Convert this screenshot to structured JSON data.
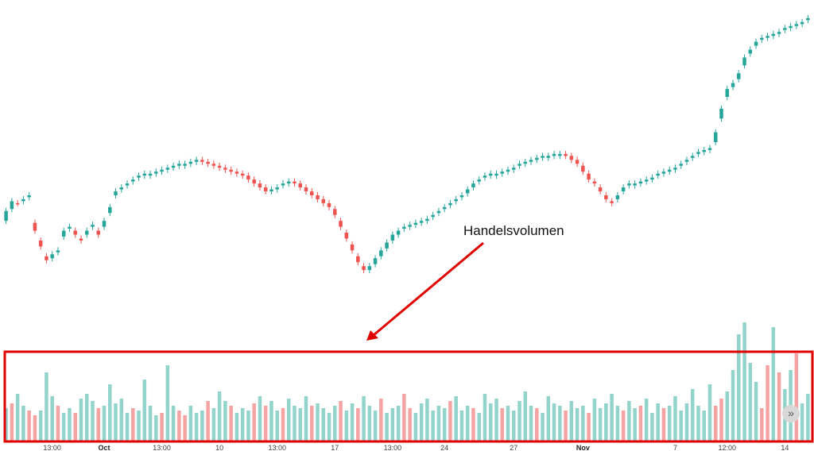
{
  "chart_data": {
    "type": "candlestick",
    "colors": {
      "up": "#26a69a",
      "down": "#ef5350",
      "vol_up": "#92d3cb",
      "vol_down": "#f5a3a3",
      "highlight": "#e00000"
    },
    "annotation": {
      "text": "Handelsvolumen"
    },
    "x_ticks": [
      {
        "label": "13:00",
        "bold": false,
        "i": 8
      },
      {
        "label": "Oct",
        "bold": true,
        "i": 17
      },
      {
        "label": "13:00",
        "bold": false,
        "i": 27
      },
      {
        "label": "10",
        "bold": false,
        "i": 37
      },
      {
        "label": "13:00",
        "bold": false,
        "i": 47
      },
      {
        "label": "17",
        "bold": false,
        "i": 57
      },
      {
        "label": "13:00",
        "bold": false,
        "i": 67
      },
      {
        "label": "24",
        "bold": false,
        "i": 76
      },
      {
        "label": "27",
        "bold": false,
        "i": 88
      },
      {
        "label": "Nov",
        "bold": true,
        "i": 100
      },
      {
        "label": "7",
        "bold": false,
        "i": 116
      },
      {
        "label": "12:00",
        "bold": false,
        "i": 125
      },
      {
        "label": "14",
        "bold": false,
        "i": 135
      }
    ],
    "closes": [
      310,
      305,
      306,
      304,
      302,
      320,
      328,
      335,
      332,
      330,
      320,
      318,
      322,
      325,
      320,
      317,
      322,
      315,
      308,
      300,
      298,
      296,
      294,
      292,
      291,
      291,
      290,
      289,
      288,
      287,
      286,
      286,
      285,
      284,
      285,
      286,
      287,
      288,
      289,
      290,
      291,
      292,
      294,
      296,
      298,
      300,
      299,
      298,
      296,
      295,
      296,
      298,
      300,
      302,
      304,
      306,
      308,
      312,
      318,
      324,
      330,
      336,
      340,
      338,
      334,
      330,
      326,
      322,
      320,
      318,
      317,
      316,
      315,
      314,
      312,
      310,
      308,
      306,
      304,
      302,
      299,
      296,
      294,
      292,
      291,
      291,
      290,
      289,
      288,
      286,
      285,
      284,
      283,
      282,
      282,
      281,
      281,
      282,
      284,
      286,
      290,
      294,
      296,
      300,
      304,
      306,
      302,
      298,
      296,
      296,
      295,
      294,
      293,
      291,
      290,
      289,
      288,
      286,
      284,
      282,
      280,
      279,
      278,
      270,
      258,
      248,
      245,
      240,
      232,
      228,
      224,
      222,
      221,
      220,
      219,
      217,
      216,
      215,
      214,
      212
    ],
    "opens": [
      315,
      309,
      306,
      305,
      303,
      316,
      325,
      333,
      334,
      331,
      323,
      319,
      320,
      324,
      322,
      318,
      320,
      318,
      311,
      302,
      299,
      297,
      295,
      293,
      292,
      292,
      291,
      290,
      289,
      288,
      287,
      287,
      286,
      285,
      284,
      285,
      286,
      287,
      288,
      289,
      290,
      291,
      292,
      294,
      296,
      298,
      300,
      299,
      297,
      296,
      295,
      296,
      298,
      300,
      302,
      304,
      306,
      309,
      315,
      321,
      327,
      333,
      338,
      340,
      337,
      333,
      329,
      325,
      322,
      319,
      318,
      317,
      316,
      315,
      313,
      311,
      309,
      307,
      305,
      303,
      301,
      298,
      295,
      293,
      292,
      292,
      291,
      290,
      289,
      287,
      286,
      285,
      284,
      283,
      283,
      282,
      282,
      281,
      282,
      284,
      287,
      291,
      295,
      298,
      302,
      305,
      304,
      300,
      297,
      297,
      296,
      295,
      294,
      292,
      291,
      290,
      289,
      287,
      285,
      283,
      281,
      280,
      279,
      275,
      263,
      252,
      247,
      243,
      236,
      230,
      226,
      223,
      222,
      221,
      220,
      218,
      217,
      216,
      215,
      213
    ],
    "volumes": [
      28,
      32,
      40,
      30,
      26,
      22,
      26,
      58,
      38,
      30,
      24,
      28,
      24,
      36,
      40,
      34,
      28,
      30,
      48,
      32,
      36,
      24,
      28,
      26,
      52,
      30,
      22,
      24,
      64,
      30,
      26,
      22,
      30,
      24,
      26,
      34,
      28,
      42,
      34,
      30,
      24,
      28,
      26,
      32,
      38,
      30,
      34,
      26,
      28,
      36,
      30,
      28,
      38,
      30,
      32,
      28,
      24,
      30,
      34,
      26,
      32,
      28,
      38,
      30,
      26,
      36,
      24,
      28,
      30,
      40,
      28,
      24,
      32,
      36,
      26,
      30,
      28,
      34,
      38,
      26,
      30,
      28,
      24,
      40,
      32,
      36,
      28,
      30,
      26,
      34,
      42,
      30,
      28,
      24,
      38,
      32,
      30,
      26,
      34,
      28,
      30,
      24,
      36,
      28,
      32,
      40,
      30,
      26,
      34,
      28,
      30,
      36,
      24,
      32,
      28,
      30,
      38,
      26,
      32,
      44,
      30,
      26,
      48,
      30,
      36,
      42,
      60,
      90,
      100,
      66,
      50,
      28,
      64,
      96,
      58,
      44,
      60,
      74,
      32,
      40
    ],
    "volume_up": [
      true,
      false,
      true,
      true,
      false,
      false,
      true,
      true,
      true,
      false,
      true,
      true,
      false,
      true,
      true,
      true,
      false,
      true,
      true,
      true,
      true,
      true,
      false,
      true,
      true,
      true,
      true,
      false,
      true,
      true,
      false,
      false,
      true,
      true,
      true,
      false,
      true,
      true,
      true,
      false,
      true,
      true,
      true,
      false,
      true,
      false,
      true,
      true,
      false,
      true,
      true,
      true,
      true,
      false,
      true,
      true,
      true,
      true,
      false,
      true,
      true,
      false,
      true,
      true,
      true,
      false,
      true,
      true,
      true,
      false,
      false,
      true,
      true,
      true,
      true,
      true,
      true,
      false,
      true,
      true,
      true,
      false,
      true,
      true,
      true,
      true,
      false,
      true,
      true,
      true,
      true,
      true,
      false,
      true,
      true,
      true,
      true,
      false,
      true,
      true,
      true,
      false,
      true,
      true,
      true,
      true,
      true,
      false,
      true,
      true,
      false,
      true,
      true,
      true,
      false,
      true,
      true,
      true,
      true,
      true,
      true,
      true,
      true,
      false,
      false,
      true,
      true,
      true,
      true,
      true,
      true,
      false,
      false,
      true,
      false,
      true,
      true,
      false,
      true,
      true
    ]
  }
}
